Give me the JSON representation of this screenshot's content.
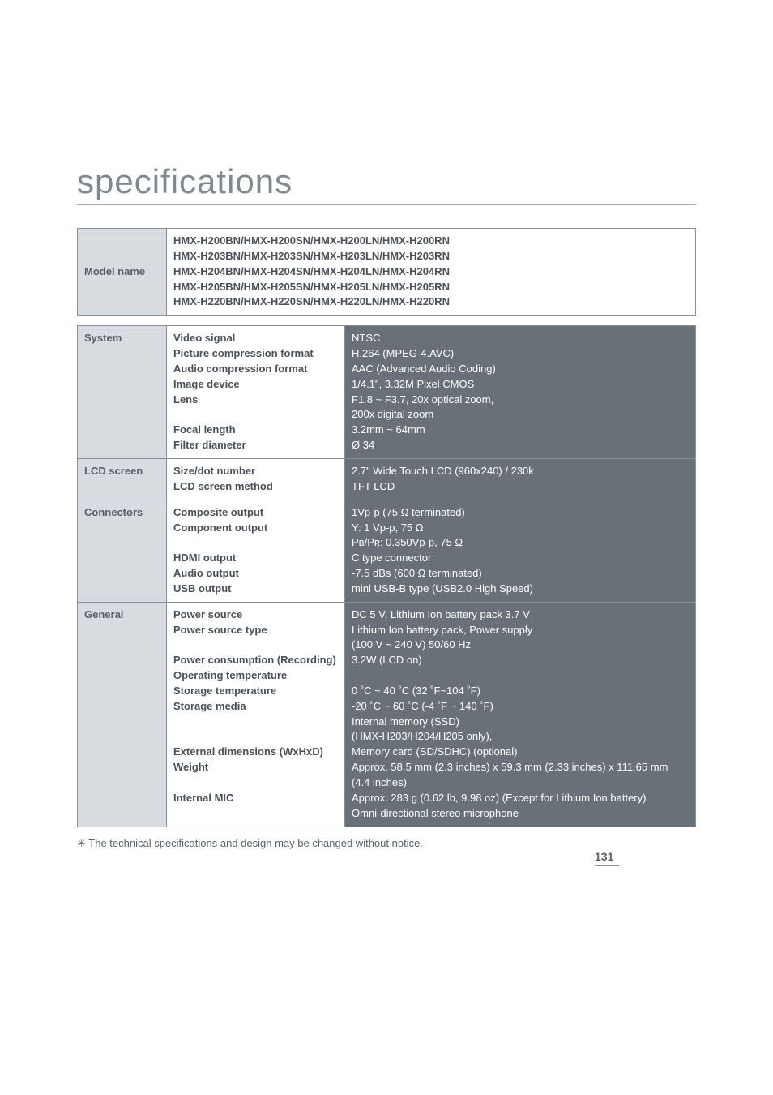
{
  "title": "specifications",
  "modelHeader": "Model name",
  "modelValue": "HMX-H200BN/HMX-H200SN/HMX-H200LN/HMX-H200RN\nHMX-H203BN/HMX-H203SN/HMX-H203LN/HMX-H203RN\nHMX-H204BN/HMX-H204SN/HMX-H204LN/HMX-H204RN\nHMX-H205BN/HMX-H205SN/HMX-H205LN/HMX-H205RN\nHMX-H220BN/HMX-H220SN/HMX-H220LN/HMX-H220RN",
  "sections": [
    {
      "name": "System",
      "labels": "Video signal\nPicture compression format\nAudio compression format\nImage device\nLens\n\nFocal length\nFilter diameter",
      "values": "NTSC\nH.264 (MPEG-4.AVC)\nAAC (Advanced Audio Coding)\n1/4.1\", 3.32M Pixel CMOS\nF1.8 ~ F3.7, 20x optical zoom,\n200x digital zoom\n3.2mm ~ 64mm\nØ 34"
    },
    {
      "name": "LCD screen",
      "labels": "Size/dot number\nLCD screen method",
      "values": "2.7\" Wide Touch LCD (960x240) / 230k\nTFT LCD"
    },
    {
      "name": "Connectors",
      "labels": "Composite output\nComponent output\n\nHDMI output\nAudio output\nUSB output",
      "values": "1Vp-p (75 Ω terminated)\nY: 1 Vp-p, 75 Ω\nPʙ/Pʀ: 0.350Vp-p, 75 Ω\nC type connector\n-7.5 dBs (600 Ω terminated)\nmini USB-B type (USB2.0 High Speed)"
    },
    {
      "name": "General",
      "labels": "Power source\nPower source type\n\nPower consumption (Recording)\nOperating temperature\nStorage temperature\nStorage media\n\n\nExternal dimensions (WxHxD)\nWeight\n\nInternal MIC",
      "values": "DC 5 V, Lithium Ion battery pack 3.7 V\nLithium Ion battery pack, Power supply\n(100 V ~ 240 V) 50/60 Hz\n3.2W (LCD on)\n\n0 ˚C ~ 40 ˚C (32 ˚F~104 ˚F)\n-20 ˚C ~ 60 ˚C (-4 ˚F ~ 140 ˚F)\nInternal memory (SSD)\n(HMX-H203/H204/H205 only),\nMemory card (SD/SDHC) (optional)\nApprox. 58.5 mm (2.3 inches) x 59.3 mm (2.33 inches) x 111.65 mm (4.4 inches)\nApprox. 283 g (0.62 lb, 9.98 oz) (Except for Lithium Ion battery)\nOmni-directional stereo microphone"
    }
  ],
  "footnote": "✳ The technical specifications and design may be changed without notice.",
  "pageNumber": "131",
  "colors": {
    "headerBg": "#d8dce0",
    "valueBg": "#6a7078",
    "borderColor": "#8a9098",
    "titleColor": "#808890",
    "textColor": "#4a5058"
  },
  "fontSizes": {
    "title": 42,
    "body": 13,
    "pageNum": 14
  }
}
